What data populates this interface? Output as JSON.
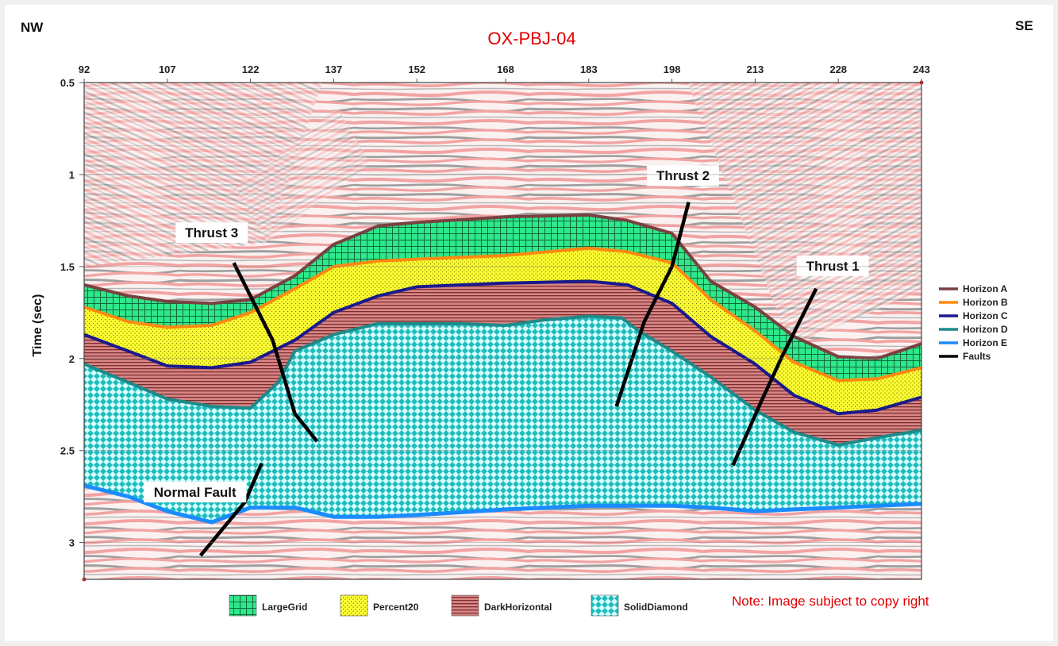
{
  "chart_data": {
    "type": "seismic_section",
    "title": "OX-PBJ-04",
    "corner_left": "NW",
    "corner_right": "SE",
    "xlabel": "",
    "ylabel": "Time (sec)",
    "xlim": [
      92,
      243
    ],
    "ylim": [
      0.5,
      3.2
    ],
    "x_ticks": [
      "92",
      "107",
      "122",
      "137",
      "152",
      "168",
      "183",
      "198",
      "213",
      "228",
      "243"
    ],
    "y_ticks": [
      "0.5",
      "1",
      "1.5",
      "2",
      "2.5",
      "3"
    ],
    "x_tick_values": [
      92,
      107,
      122,
      137,
      152,
      168,
      183,
      198,
      213,
      228,
      243
    ],
    "y_tick_values": [
      0.5,
      1,
      1.5,
      2,
      2.5,
      3
    ],
    "horizons": [
      {
        "name": "Horizon A",
        "color": "#7a4141",
        "width": 4,
        "points": [
          [
            92,
            1.6
          ],
          [
            100,
            1.66
          ],
          [
            107,
            1.69
          ],
          [
            115,
            1.7
          ],
          [
            122,
            1.68
          ],
          [
            130,
            1.55
          ],
          [
            137,
            1.38
          ],
          [
            145,
            1.28
          ],
          [
            152,
            1.26
          ],
          [
            168,
            1.23
          ],
          [
            183,
            1.22
          ],
          [
            190,
            1.25
          ],
          [
            198,
            1.32
          ],
          [
            205,
            1.58
          ],
          [
            213,
            1.72
          ],
          [
            220,
            1.88
          ],
          [
            228,
            1.99
          ],
          [
            235,
            2.0
          ],
          [
            243,
            1.92
          ]
        ]
      },
      {
        "name": "Horizon B",
        "color": "#ff8a10",
        "width": 4,
        "points": [
          [
            92,
            1.72
          ],
          [
            100,
            1.8
          ],
          [
            107,
            1.83
          ],
          [
            115,
            1.82
          ],
          [
            122,
            1.75
          ],
          [
            130,
            1.62
          ],
          [
            137,
            1.5
          ],
          [
            145,
            1.47
          ],
          [
            152,
            1.46
          ],
          [
            168,
            1.44
          ],
          [
            183,
            1.4
          ],
          [
            190,
            1.42
          ],
          [
            198,
            1.48
          ],
          [
            205,
            1.68
          ],
          [
            213,
            1.85
          ],
          [
            220,
            2.02
          ],
          [
            228,
            2.12
          ],
          [
            235,
            2.11
          ],
          [
            243,
            2.05
          ]
        ]
      },
      {
        "name": "Horizon C",
        "color": "#1a1a8c",
        "width": 4,
        "points": [
          [
            92,
            1.87
          ],
          [
            100,
            1.96
          ],
          [
            107,
            2.04
          ],
          [
            115,
            2.05
          ],
          [
            122,
            2.02
          ],
          [
            130,
            1.9
          ],
          [
            137,
            1.75
          ],
          [
            145,
            1.66
          ],
          [
            152,
            1.61
          ],
          [
            168,
            1.59
          ],
          [
            183,
            1.58
          ],
          [
            190,
            1.6
          ],
          [
            198,
            1.7
          ],
          [
            205,
            1.88
          ],
          [
            213,
            2.03
          ],
          [
            220,
            2.2
          ],
          [
            228,
            2.3
          ],
          [
            235,
            2.28
          ],
          [
            243,
            2.21
          ]
        ]
      },
      {
        "name": "Horizon D",
        "color": "#1e8a8a",
        "width": 4,
        "points": [
          [
            92,
            2.03
          ],
          [
            100,
            2.13
          ],
          [
            107,
            2.22
          ],
          [
            115,
            2.26
          ],
          [
            122,
            2.27
          ],
          [
            127,
            2.13
          ],
          [
            130,
            1.96
          ],
          [
            137,
            1.87
          ],
          [
            145,
            1.81
          ],
          [
            152,
            1.81
          ],
          [
            160,
            1.81
          ],
          [
            168,
            1.82
          ],
          [
            175,
            1.79
          ],
          [
            183,
            1.77
          ],
          [
            189,
            1.78
          ],
          [
            192,
            1.85
          ],
          [
            198,
            1.96
          ],
          [
            205,
            2.1
          ],
          [
            213,
            2.28
          ],
          [
            220,
            2.4
          ],
          [
            228,
            2.47
          ],
          [
            235,
            2.43
          ],
          [
            243,
            2.39
          ]
        ]
      },
      {
        "name": "Horizon E",
        "color": "#1a8cff",
        "width": 5,
        "points": [
          [
            92,
            2.69
          ],
          [
            100,
            2.75
          ],
          [
            107,
            2.83
          ],
          [
            115,
            2.89
          ],
          [
            122,
            2.81
          ],
          [
            130,
            2.81
          ],
          [
            137,
            2.86
          ],
          [
            145,
            2.86
          ],
          [
            152,
            2.85
          ],
          [
            168,
            2.82
          ],
          [
            183,
            2.8
          ],
          [
            190,
            2.8
          ],
          [
            198,
            2.8
          ],
          [
            205,
            2.81
          ],
          [
            213,
            2.83
          ],
          [
            220,
            2.82
          ],
          [
            228,
            2.81
          ],
          [
            235,
            2.8
          ],
          [
            243,
            2.79
          ]
        ]
      }
    ],
    "faults": [
      {
        "name": "Thrust 3",
        "color": "#000000",
        "points": [
          [
            119,
            1.48
          ],
          [
            126,
            1.9
          ],
          [
            130,
            2.3
          ],
          [
            134,
            2.45
          ]
        ]
      },
      {
        "name": "Thrust 2",
        "color": "#000000",
        "points": [
          [
            201,
            1.15
          ],
          [
            198,
            1.5
          ],
          [
            193,
            1.8
          ],
          [
            188,
            2.26
          ]
        ]
      },
      {
        "name": "Thrust 1",
        "color": "#000000",
        "points": [
          [
            224,
            1.62
          ],
          [
            218,
            1.98
          ],
          [
            214,
            2.24
          ],
          [
            209,
            2.58
          ]
        ]
      },
      {
        "name": "Normal Fault",
        "color": "#000000",
        "points": [
          [
            124,
            2.57
          ],
          [
            121,
            2.78
          ],
          [
            113,
            3.07
          ]
        ]
      }
    ],
    "fault_labels": [
      {
        "text": "Thrust 3",
        "x": 115,
        "y": 1.32
      },
      {
        "text": "Thrust 2",
        "x": 200,
        "y": 1.01
      },
      {
        "text": "Thrust 1",
        "x": 227,
        "y": 1.5
      },
      {
        "text": "Normal Fault",
        "x": 112,
        "y": 2.73
      }
    ],
    "fills": [
      {
        "name": "LargeGrid",
        "between": [
          "Horizon A",
          "Horizon B"
        ],
        "color": "#2ee88c",
        "pattern": "large-grid"
      },
      {
        "name": "Percent20",
        "between": [
          "Horizon B",
          "Horizon C"
        ],
        "color": "#ffff33",
        "pattern": "dots"
      },
      {
        "name": "DarkHorizontal",
        "between": [
          "Horizon C",
          "Horizon D"
        ],
        "color": "#c86b6b",
        "pattern": "horizontal"
      },
      {
        "name": "SolidDiamond",
        "between": [
          "Horizon D",
          "Horizon E"
        ],
        "color": "#33d6d6",
        "pattern": "diamond"
      }
    ],
    "line_legend": [
      {
        "label": "Horizon A",
        "color": "#7a4141"
      },
      {
        "label": "Horizon B",
        "color": "#ff8a10"
      },
      {
        "label": "Horizon C",
        "color": "#1a1a8c"
      },
      {
        "label": "Horizon D",
        "color": "#1e8a8a"
      },
      {
        "label": "Horizon E",
        "color": "#1a8cff"
      },
      {
        "label": "Faults",
        "color": "#000000"
      }
    ],
    "fill_legend": [
      {
        "label": "LargeGrid",
        "pattern": "large-grid"
      },
      {
        "label": "Percent20",
        "pattern": "dots"
      },
      {
        "label": "DarkHorizontal",
        "pattern": "horizontal"
      },
      {
        "label": "SolidDiamond",
        "pattern": "diamond"
      }
    ],
    "legend_placement": "right",
    "grid": false
  },
  "note": "Note: Image subject to copy right",
  "colors": {
    "title": "#e00000",
    "note": "#e00000",
    "seismic_light": "#ffffff",
    "seismic_pink": "#f4a7a7",
    "seismic_grey": "#9a9a9a"
  }
}
